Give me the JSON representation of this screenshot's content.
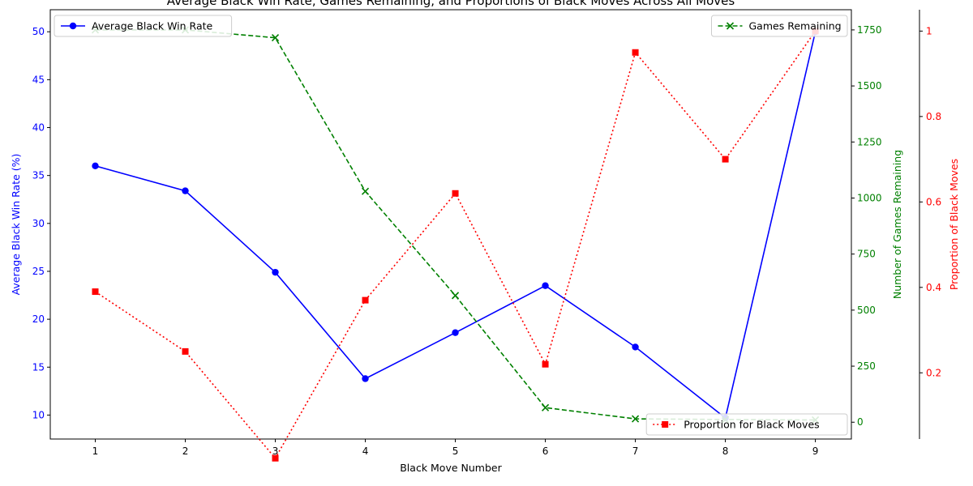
{
  "chart_data": {
    "type": "line",
    "title": "Average Black Win Rate, Games Remaining, and Proportions of Black Moves Across All Moves",
    "xlabel": "Black Move Number",
    "x": [
      1,
      2,
      3,
      4,
      5,
      6,
      7,
      8,
      9
    ],
    "xlim": [
      0.5,
      9.4
    ],
    "axes": {
      "left": {
        "label": "Average Black Win Rate (%)",
        "ylim": [
          7.5,
          52.3
        ],
        "ticks": [
          10,
          15,
          20,
          25,
          30,
          35,
          40,
          45,
          50
        ],
        "color": "#0000ff"
      },
      "right1": {
        "label": "Number of Games Remaining",
        "ylim": [
          -75,
          1840
        ],
        "ticks": [
          0,
          250,
          500,
          750,
          1000,
          1250,
          1500,
          1750
        ],
        "color": "#008000"
      },
      "right2": {
        "label": "Proportion of Black Moves",
        "ylim": [
          0.045,
          1.05
        ],
        "ticks": [
          0.2,
          0.4,
          0.6,
          0.8,
          1.0
        ],
        "color": "#ff0000"
      }
    },
    "series": [
      {
        "name": "Average Black Win Rate",
        "axis": "left",
        "color": "#0000ff",
        "marker": "circle",
        "dash": "solid",
        "legend": "top-left",
        "values": [
          36.0,
          33.4,
          24.9,
          13.8,
          18.6,
          23.5,
          17.1,
          9.7,
          50.0
        ]
      },
      {
        "name": "Games Remaining",
        "axis": "right1",
        "color": "#008000",
        "marker": "x",
        "dash": "dashed",
        "legend": "top-right",
        "values": [
          1750,
          1750,
          1715,
          1030,
          565,
          65,
          15,
          12,
          10
        ]
      },
      {
        "name": "Proportion for Black Moves",
        "axis": "right2",
        "color": "#ff0000",
        "marker": "square",
        "dash": "dotted",
        "legend": "bottom-right",
        "values": [
          0.39,
          0.25,
          0.0,
          0.37,
          0.62,
          0.22,
          0.95,
          0.7,
          1.0
        ]
      }
    ]
  }
}
